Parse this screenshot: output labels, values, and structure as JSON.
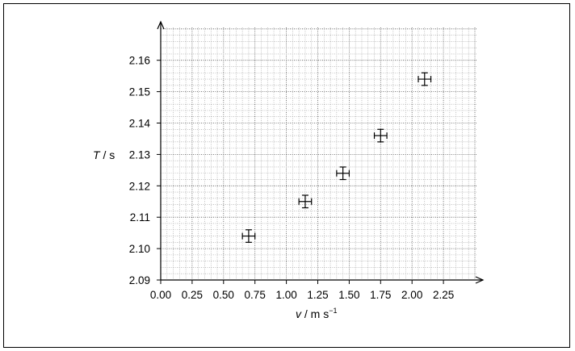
{
  "chart_data": {
    "type": "scatter",
    "title": "",
    "xlabel": {
      "symbol": "v",
      "unit": " / m s",
      "unit_exp": "−1"
    },
    "ylabel": {
      "symbol": "T",
      "unit": " / s"
    },
    "xlim": [
      0,
      2.5
    ],
    "ylim": [
      2.09,
      2.17
    ],
    "x_ticks": [
      "0.00",
      "0.25",
      "0.50",
      "0.75",
      "1.00",
      "1.25",
      "1.50",
      "1.75",
      "2.00",
      "2.25"
    ],
    "y_ticks": [
      "2.09",
      "2.10",
      "2.11",
      "2.12",
      "2.13",
      "2.14",
      "2.15",
      "2.16"
    ],
    "grid": true,
    "error_bars": true,
    "series": [
      {
        "points": [
          {
            "x": 0.7,
            "y": 2.104,
            "x_err": 0.05,
            "y_err": 0.002
          },
          {
            "x": 1.15,
            "y": 2.115,
            "x_err": 0.05,
            "y_err": 0.002
          },
          {
            "x": 1.45,
            "y": 2.124,
            "x_err": 0.05,
            "y_err": 0.002
          },
          {
            "x": 1.75,
            "y": 2.136,
            "x_err": 0.05,
            "y_err": 0.002
          },
          {
            "x": 2.1,
            "y": 2.154,
            "x_err": 0.05,
            "y_err": 0.002
          }
        ]
      }
    ]
  }
}
